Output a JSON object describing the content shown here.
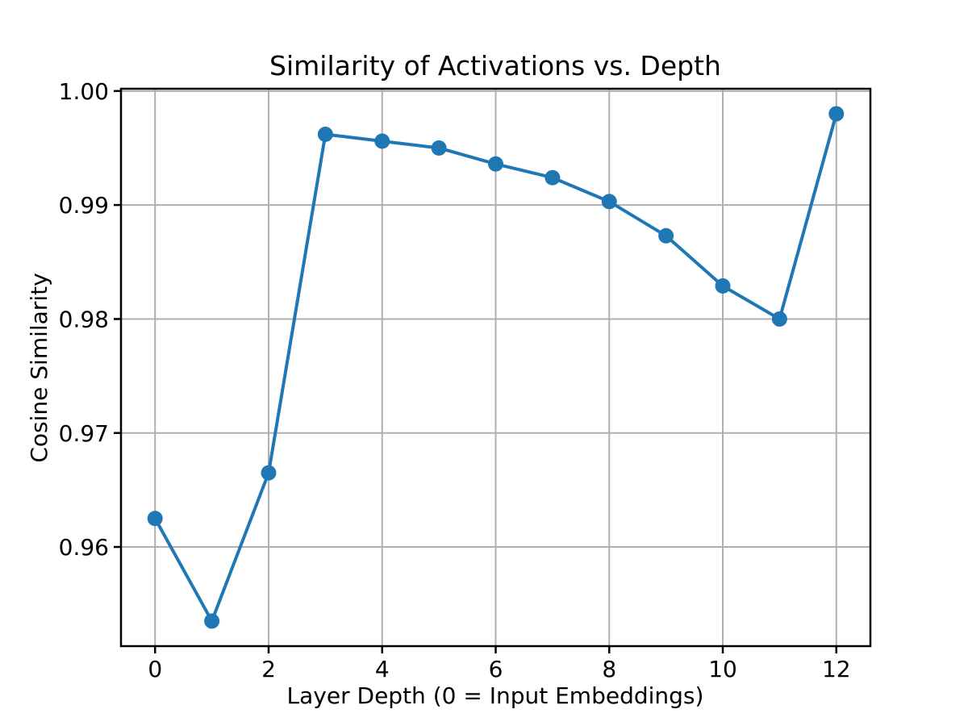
{
  "figure": {
    "background": "#ffffff"
  },
  "chart_data": {
    "type": "line",
    "title": "Similarity of Activations vs. Depth",
    "xlabel": "Layer Depth (0 = Input Embeddings)",
    "ylabel": "Cosine Similarity",
    "x": [
      0,
      1,
      2,
      3,
      4,
      5,
      6,
      7,
      8,
      9,
      10,
      11,
      12
    ],
    "y": [
      0.9625,
      0.9535,
      0.9665,
      0.9962,
      0.9956,
      0.995,
      0.9936,
      0.9924,
      0.9903,
      0.9873,
      0.9829,
      0.98,
      0.998
    ],
    "xlim": [
      -0.6,
      12.6
    ],
    "ylim": [
      0.9513,
      1.0002
    ],
    "xticks": {
      "values": [
        0,
        2,
        4,
        6,
        8,
        10,
        12
      ],
      "labels": [
        "0",
        "2",
        "4",
        "6",
        "8",
        "10",
        "12"
      ]
    },
    "yticks": {
      "values": [
        0.96,
        0.97,
        0.98,
        0.99,
        1.0
      ],
      "labels": [
        "0.96",
        "0.97",
        "0.98",
        "0.99",
        "1.00"
      ]
    },
    "grid": true,
    "legend": false,
    "line_color": "#1f77b4",
    "marker": "o",
    "grid_color": "#b0b0b0",
    "spine_color": "#000000"
  }
}
